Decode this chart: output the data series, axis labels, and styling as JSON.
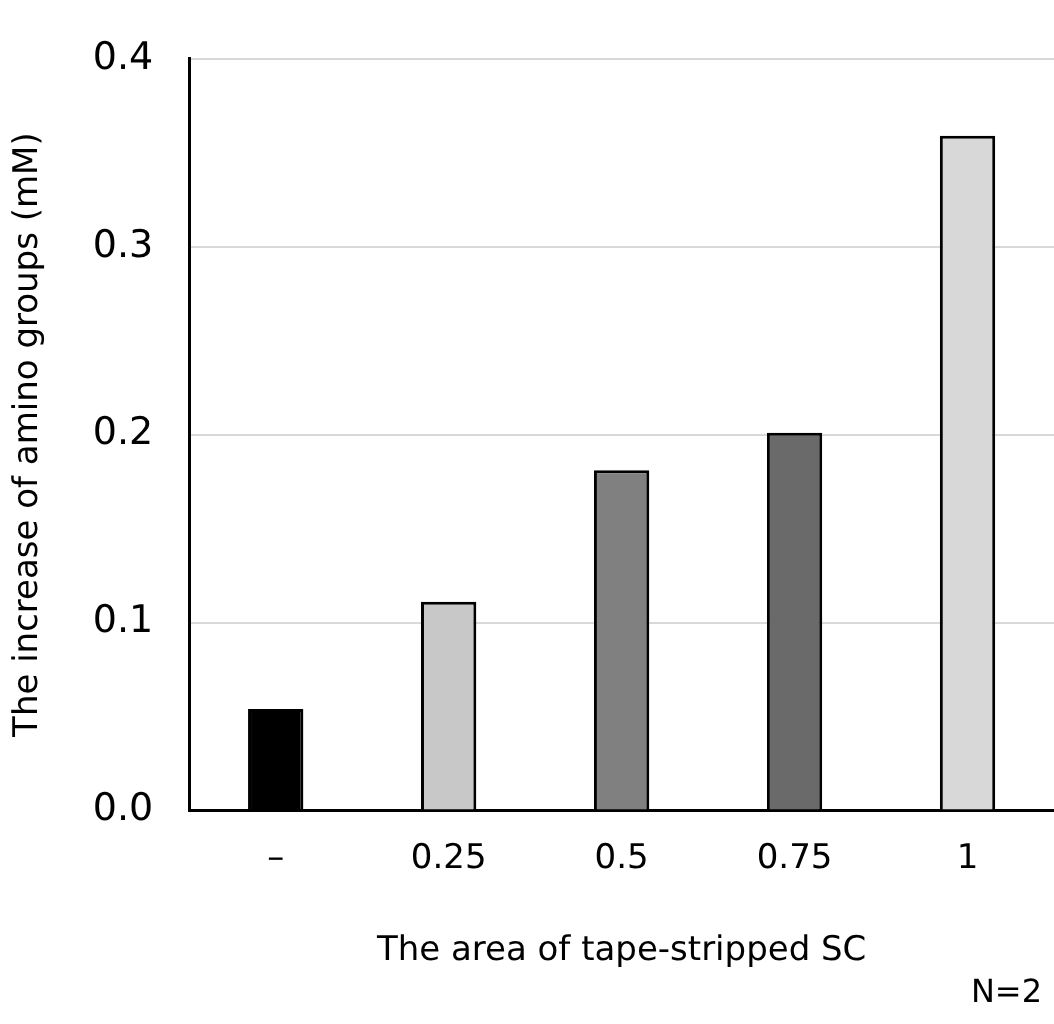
{
  "chart_data": {
    "type": "bar",
    "xlabel": "The area of tape-stripped SC",
    "ylabel": "The increase of amino groups (mM)",
    "categories": [
      "–",
      "0.25",
      "0.5",
      "0.75",
      "1"
    ],
    "values": [
      0.054,
      0.111,
      0.181,
      0.201,
      0.359
    ],
    "colors": [
      "#000000",
      "#c8c8c8",
      "#808080",
      "#6a6a6a",
      "#d8d8d8"
    ],
    "ylim": [
      0,
      0.4
    ],
    "yticks": [
      {
        "value": 0,
        "label": "0.0"
      },
      0.1,
      0.2,
      0.3,
      0.4
    ],
    "grid": "y",
    "legend": false,
    "annotations": [
      "N=2"
    ]
  }
}
